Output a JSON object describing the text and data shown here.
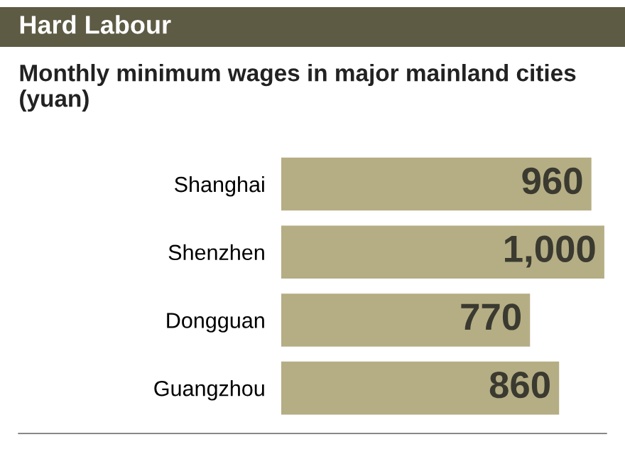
{
  "chart_data": {
    "type": "bar",
    "orientation": "horizontal",
    "title": "Hard Labour",
    "subtitle": "Monthly minimum wages in major mainland cities (yuan)",
    "categories": [
      "Shanghai",
      "Shenzhen",
      "Dongguan",
      "Guangzhou"
    ],
    "values": [
      960,
      1000,
      770,
      860
    ],
    "value_labels": [
      "960",
      "1,000",
      "770",
      "860"
    ],
    "color": "#b5ad84",
    "grid": false
  }
}
